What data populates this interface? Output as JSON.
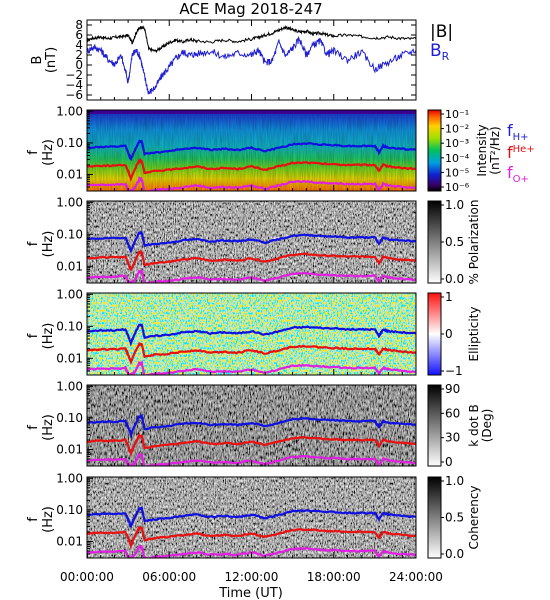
{
  "title": "ACE Mag 2018-247",
  "x_axis": {
    "label": "Time (UT)",
    "ticks": [
      "00:00:00",
      "06:00:00",
      "12:00:00",
      "18:00:00",
      "24:00:00"
    ],
    "tick_hours": [
      0,
      6,
      12,
      18,
      24
    ],
    "range_hours": [
      0,
      24
    ]
  },
  "legend": {
    "field": [
      {
        "text": "|B|",
        "color": "#000000"
      },
      {
        "text": "B",
        "sub": "R",
        "color": "#1f1fd0"
      }
    ],
    "gyro": [
      {
        "text": "f",
        "sub": "H+",
        "color": "#1f1fd0"
      },
      {
        "text": "f",
        "sub": "He+",
        "color": "#e01010"
      },
      {
        "text": "f",
        "sub": "O+",
        "color": "#e020e0"
      }
    ]
  },
  "colors": {
    "B_total": "#000000",
    "B_R": "#1f1fd0",
    "f_H": "#1010e0",
    "f_He": "#e81010",
    "f_O": "#e020e0"
  },
  "panels": [
    {
      "id": "field",
      "ylabel": "B",
      "yunit": "(nT)",
      "cbar_title": "",
      "cbar_type": "none"
    },
    {
      "id": "intensity",
      "ylabel": "f",
      "yunit": "(Hz)",
      "cbar_title": "Intensity",
      "cbar_unit": "(nT²/Hz)",
      "cbar_type": "rainbow"
    },
    {
      "id": "polarization",
      "ylabel": "f",
      "yunit": "(Hz)",
      "cbar_title": "% Polarization",
      "cbar_unit": "",
      "cbar_type": "gray"
    },
    {
      "id": "ellipticity",
      "ylabel": "f",
      "yunit": "(Hz)",
      "cbar_title": "Ellipticity",
      "cbar_unit": "",
      "cbar_type": "bwr"
    },
    {
      "id": "kdotb",
      "ylabel": "f",
      "yunit": "(Hz)",
      "cbar_title": "k dot B",
      "cbar_unit": "(Deg)",
      "cbar_type": "gray"
    },
    {
      "id": "coherency",
      "ylabel": "f",
      "yunit": "(Hz)",
      "cbar_title": "Coherency",
      "cbar_unit": "",
      "cbar_type": "gray"
    }
  ],
  "freq_axis": {
    "ticks": [
      "1.00",
      "0.10",
      "0.01"
    ],
    "tick_values": [
      1.0,
      0.1,
      0.01
    ],
    "range": [
      0.003,
      1.1
    ],
    "scale": "log"
  },
  "cbar_ticks": {
    "intensity": [
      "10⁻¹",
      "10⁻²",
      "10⁻³",
      "10⁻⁴",
      "10⁻⁵",
      "10⁻⁶"
    ],
    "polarization": [
      "1.0",
      "0.5",
      "0.0"
    ],
    "ellipticity": [
      "1",
      "0",
      "−1"
    ],
    "kdotb": [
      "90",
      "60",
      "30",
      "0"
    ],
    "coherency": [
      "1.0",
      "0.5",
      "0.0"
    ]
  },
  "chart_data": [
    {
      "type": "line",
      "title": "ACE Mag 2018-247",
      "xlabel": "Time (UT)",
      "ylabel": "B (nT)",
      "xlim": [
        0,
        24
      ],
      "ylim": [
        -7,
        9
      ],
      "yticks": [
        -6,
        -4,
        -2,
        0,
        2,
        4,
        6,
        8
      ],
      "series": [
        {
          "name": "|B|",
          "color": "#000000",
          "x": [
            0,
            0.5,
            1,
            1.5,
            2,
            2.5,
            3,
            3.3,
            3.6,
            3.9,
            4.2,
            4.5,
            5,
            5.5,
            6,
            6.5,
            7,
            7.5,
            8,
            9,
            10,
            11,
            12,
            12.5,
            13,
            13.5,
            14,
            14.5,
            15,
            15.5,
            16,
            16.5,
            17,
            17.5,
            18,
            19,
            20,
            21,
            22,
            23,
            24
          ],
          "y": [
            5.0,
            5.4,
            5.6,
            5.3,
            5.5,
            5.7,
            5.9,
            4.5,
            6.5,
            7.6,
            7.3,
            3.2,
            2.8,
            3.6,
            4.5,
            5.0,
            4.6,
            5.1,
            4.8,
            4.6,
            5.0,
            4.7,
            5.2,
            5.5,
            6.0,
            6.4,
            7.0,
            7.6,
            7.0,
            6.6,
            6.8,
            6.2,
            6.4,
            6.0,
            5.8,
            6.0,
            5.7,
            5.4,
            5.6,
            5.3,
            5.2
          ]
        },
        {
          "name": "B_R",
          "color": "#1f1fd0",
          "x": [
            0,
            0.5,
            1,
            1.5,
            2,
            2.5,
            3,
            3.3,
            3.6,
            3.9,
            4.2,
            4.5,
            5,
            5.5,
            6,
            6.5,
            7,
            7.5,
            8,
            9,
            10,
            11,
            12,
            12.5,
            13,
            13.5,
            14,
            14.5,
            15,
            15.5,
            16,
            16.5,
            17,
            17.5,
            18,
            19,
            20,
            21,
            22,
            23,
            24
          ],
          "y": [
            2.8,
            3.6,
            3.0,
            1.2,
            0.2,
            1.8,
            -3.4,
            2.0,
            3.0,
            1.5,
            -2.4,
            -5.6,
            -4.4,
            -2.0,
            -0.4,
            1.4,
            2.6,
            2.0,
            2.2,
            2.8,
            1.6,
            2.4,
            2.0,
            3.0,
            0.4,
            0.8,
            4.6,
            1.8,
            3.4,
            5.2,
            2.0,
            4.0,
            4.8,
            2.2,
            2.8,
            1.0,
            2.6,
            -0.8,
            0.6,
            2.0,
            3.0
          ]
        }
      ]
    },
    {
      "type": "heatmap",
      "panels": [
        "Intensity",
        "% Polarization",
        "Ellipticity",
        "k dot B",
        "Coherency"
      ],
      "xlabel": "Time (UT)",
      "ylabel": "f (Hz)",
      "yscale": "log",
      "ylim": [
        0.003,
        1.0
      ],
      "overlay_lines": [
        {
          "name": "f_H+",
          "color": "#1010e0",
          "x": [
            0,
            1,
            2,
            2.8,
            3.0,
            3.2,
            3.5,
            3.8,
            4.0,
            4.2,
            5,
            6,
            7,
            8,
            9,
            10,
            11,
            12,
            13,
            14,
            15,
            16,
            17,
            18,
            19,
            20,
            21,
            21.3,
            21.6,
            22,
            23,
            24
          ],
          "y": [
            0.07,
            0.075,
            0.075,
            0.08,
            0.05,
            0.03,
            0.06,
            0.11,
            0.11,
            0.045,
            0.05,
            0.055,
            0.065,
            0.07,
            0.06,
            0.065,
            0.06,
            0.07,
            0.055,
            0.07,
            0.09,
            0.095,
            0.09,
            0.085,
            0.08,
            0.08,
            0.08,
            0.05,
            0.08,
            0.07,
            0.065,
            0.06
          ]
        },
        {
          "name": "f_He+",
          "color": "#e81010",
          "x": [
            0,
            1,
            2,
            2.8,
            3.0,
            3.2,
            3.5,
            3.8,
            4.0,
            4.2,
            5,
            6,
            7,
            8,
            9,
            10,
            11,
            12,
            13,
            14,
            15,
            16,
            17,
            18,
            19,
            20,
            21,
            21.3,
            21.6,
            22,
            23,
            24
          ],
          "y": [
            0.018,
            0.019,
            0.019,
            0.02,
            0.013,
            0.0075,
            0.015,
            0.027,
            0.027,
            0.011,
            0.013,
            0.014,
            0.016,
            0.018,
            0.015,
            0.016,
            0.015,
            0.018,
            0.014,
            0.018,
            0.023,
            0.024,
            0.022,
            0.021,
            0.02,
            0.02,
            0.02,
            0.013,
            0.02,
            0.018,
            0.016,
            0.015
          ]
        },
        {
          "name": "f_O+",
          "color": "#e020e0",
          "x": [
            0,
            1,
            2,
            2.8,
            3.0,
            3.2,
            3.5,
            3.8,
            4.0,
            4.2,
            5,
            6,
            7,
            8,
            9,
            10,
            11,
            12,
            13,
            14,
            15,
            16,
            17,
            18,
            19,
            20,
            21,
            21.3,
            21.6,
            22,
            23,
            24
          ],
          "y": [
            0.0045,
            0.0047,
            0.0047,
            0.005,
            0.0033,
            0.003,
            0.0038,
            0.0068,
            0.0068,
            0.0028,
            0.0033,
            0.0035,
            0.004,
            0.0045,
            0.0038,
            0.004,
            0.0038,
            0.0045,
            0.0035,
            0.0045,
            0.0058,
            0.006,
            0.0055,
            0.0053,
            0.005,
            0.005,
            0.005,
            0.0033,
            0.005,
            0.0045,
            0.004,
            0.0038
          ]
        }
      ]
    }
  ]
}
